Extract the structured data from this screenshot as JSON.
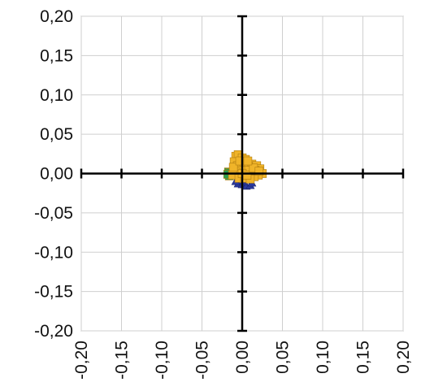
{
  "chart_data": {
    "type": "scatter",
    "title": "",
    "xlabel": "",
    "ylabel": "",
    "xlim": [
      -0.2,
      0.2
    ],
    "ylim": [
      -0.2,
      0.2
    ],
    "grid": true,
    "x_ticks": [
      -0.2,
      -0.15,
      -0.1,
      -0.05,
      0.0,
      0.05,
      0.1,
      0.15,
      0.2
    ],
    "y_ticks": [
      -0.2,
      -0.15,
      -0.1,
      -0.05,
      0.0,
      0.05,
      0.1,
      0.15,
      0.2
    ],
    "x_tick_labels": [
      "-0,20",
      "-0,15",
      "-0,10",
      "-0,05",
      "0,00",
      "0,05",
      "0,10",
      "0,15",
      "0,20"
    ],
    "y_tick_labels": [
      "-0,20",
      "-0,15",
      "-0,10",
      "-0,05",
      "0,00",
      "0,05",
      "0,10",
      "0,15",
      "0,20"
    ],
    "series": [
      {
        "color": "#2e9e4f",
        "marker": "square",
        "points": [
          [
            -0.017,
            0.002
          ],
          [
            -0.016,
            -0.003
          ],
          [
            -0.015,
            0.001
          ],
          [
            -0.018,
            -0.001
          ]
        ]
      },
      {
        "color": "#2b3a9e",
        "marker": "triangle",
        "points": [
          [
            -0.005,
            -0.013
          ],
          [
            0.0,
            -0.014
          ],
          [
            0.005,
            -0.016
          ],
          [
            0.01,
            -0.015
          ],
          [
            0.012,
            -0.012
          ],
          [
            0.002,
            -0.01
          ],
          [
            -0.008,
            -0.01
          ],
          [
            0.008,
            -0.008
          ]
        ]
      },
      {
        "color": "#f0b429",
        "marker": "square",
        "points": [
          [
            -0.008,
            0.022
          ],
          [
            -0.005,
            0.024
          ],
          [
            0.0,
            0.02
          ],
          [
            0.004,
            0.018
          ],
          [
            -0.01,
            0.015
          ],
          [
            -0.006,
            0.01
          ],
          [
            0.002,
            0.012
          ],
          [
            0.008,
            0.01
          ],
          [
            0.012,
            0.012
          ],
          [
            0.018,
            0.01
          ],
          [
            0.022,
            0.006
          ],
          [
            0.025,
            0.0
          ],
          [
            0.02,
            -0.002
          ],
          [
            0.015,
            -0.004
          ],
          [
            0.01,
            0.002
          ],
          [
            0.005,
            0.004
          ],
          [
            -0.002,
            0.004
          ],
          [
            -0.008,
            0.002
          ],
          [
            -0.012,
            -0.002
          ],
          [
            -0.004,
            -0.006
          ],
          [
            0.003,
            -0.006
          ],
          [
            0.01,
            -0.007
          ],
          [
            0.016,
            0.004
          ],
          [
            -0.011,
            0.008
          ],
          [
            0.0,
            0.0
          ],
          [
            0.006,
            -0.002
          ],
          [
            0.014,
            0.007
          ],
          [
            0.021,
            0.003
          ],
          [
            -0.003,
            0.016
          ],
          [
            0.007,
            0.016
          ]
        ]
      }
    ]
  }
}
